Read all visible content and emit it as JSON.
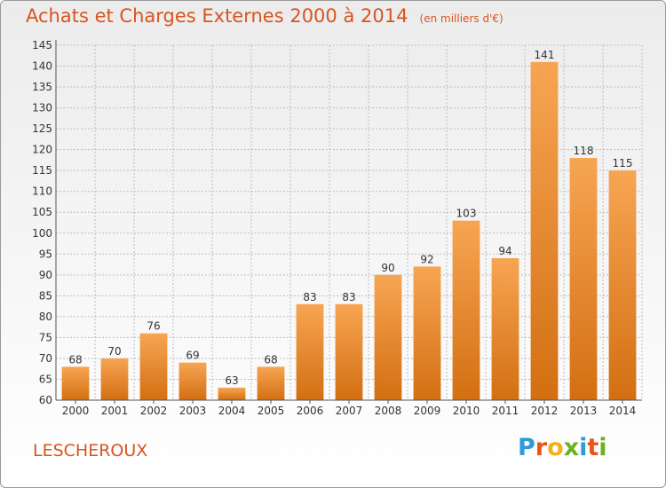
{
  "header": {
    "title": "Achats et Charges Externes 2000 à 2014",
    "unit": "(en milliers d'€)"
  },
  "footer": {
    "commune": "LESCHEROUX",
    "brand": "Proxiti",
    "brand_colors": [
      "#2f9bd6",
      "#e8541a",
      "#f2b01e",
      "#6ab023",
      "#2f9bd6",
      "#e8541a",
      "#6ab023"
    ]
  },
  "colors": {
    "bar_light": "#f7a553",
    "bar_dark": "#d36f12",
    "title": "#d9541e",
    "axis_text": "#333333",
    "grid": "#bdbdbd"
  },
  "chart_data": {
    "type": "bar",
    "title": "Achats et Charges Externes 2000 à 2014",
    "subtitle": "(en milliers d'€)",
    "categories": [
      "2000",
      "2001",
      "2002",
      "2003",
      "2004",
      "2005",
      "2006",
      "2007",
      "2008",
      "2009",
      "2010",
      "2011",
      "2012",
      "2013",
      "2014"
    ],
    "values": [
      68,
      70,
      76,
      69,
      63,
      68,
      83,
      83,
      90,
      92,
      103,
      94,
      141,
      118,
      115
    ],
    "ylim": [
      60,
      145
    ],
    "yticks": [
      60,
      65,
      70,
      75,
      80,
      85,
      90,
      95,
      100,
      105,
      110,
      115,
      120,
      125,
      130,
      135,
      140,
      145
    ],
    "grid": true,
    "xlabel": "",
    "ylabel": ""
  }
}
